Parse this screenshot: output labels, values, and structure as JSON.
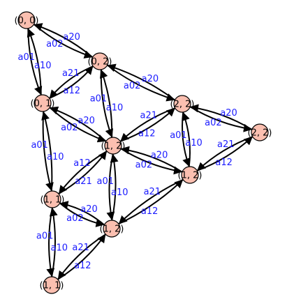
{
  "diagram": {
    "type": "directed-graph",
    "node_color": "#fbbfb0",
    "edge_label_color": "#1a1aff",
    "nodes": [
      {
        "id": "00",
        "label": "(0, 0)"
      },
      {
        "id": "02",
        "label": "(0, 2)"
      },
      {
        "id": "01",
        "label": "(0, 1)"
      },
      {
        "id": "12",
        "label": "(1, 2)"
      },
      {
        "id": "22",
        "label": "(2, 2)"
      },
      {
        "id": "22b",
        "label": "(2, 2)"
      },
      {
        "id": "11",
        "label": "(1, 1)"
      },
      {
        "id": "12b",
        "label": "(1, 2)"
      },
      {
        "id": "12c",
        "label": "(1, 2)"
      },
      {
        "id": "11b",
        "label": "(1, 1)"
      }
    ],
    "edges": [
      {
        "from": "00",
        "to": "02",
        "label": "a02"
      },
      {
        "from": "02",
        "to": "00",
        "label": "a20"
      },
      {
        "from": "00",
        "to": "01",
        "label": "a01"
      },
      {
        "from": "01",
        "to": "00",
        "label": "a10"
      },
      {
        "from": "01",
        "to": "02",
        "label": "a12"
      },
      {
        "from": "02",
        "to": "01",
        "label": "a21"
      },
      {
        "from": "02",
        "to": "22",
        "label": "a02"
      },
      {
        "from": "22",
        "to": "02",
        "label": "a20"
      },
      {
        "from": "02",
        "to": "12",
        "label": "a01"
      },
      {
        "from": "12",
        "to": "02",
        "label": "a10"
      },
      {
        "from": "01",
        "to": "12",
        "label": "a02"
      },
      {
        "from": "12",
        "to": "01",
        "label": "a20"
      },
      {
        "from": "12",
        "to": "22",
        "label": "a12"
      },
      {
        "from": "22",
        "to": "12",
        "label": "a21"
      },
      {
        "from": "22",
        "to": "22b",
        "label": "a02"
      },
      {
        "from": "22b",
        "to": "22",
        "label": "a20"
      },
      {
        "from": "22",
        "to": "12b",
        "label": "a01"
      },
      {
        "from": "12b",
        "to": "22",
        "label": "a10"
      },
      {
        "from": "12b",
        "to": "22b",
        "label": "a12"
      },
      {
        "from": "22b",
        "to": "12b",
        "label": "a21"
      },
      {
        "from": "01",
        "to": "11",
        "label": "a01"
      },
      {
        "from": "11",
        "to": "01",
        "label": "a10"
      },
      {
        "from": "11",
        "to": "12",
        "label": "a21"
      },
      {
        "from": "12",
        "to": "11",
        "label": "a12"
      },
      {
        "from": "12",
        "to": "12c",
        "label": "a01"
      },
      {
        "from": "12c",
        "to": "12",
        "label": "a10"
      },
      {
        "from": "12b",
        "to": "12",
        "label": "a20"
      },
      {
        "from": "12",
        "to": "12b",
        "label": "a02"
      },
      {
        "from": "11",
        "to": "12c",
        "label": "a02"
      },
      {
        "from": "12c",
        "to": "11",
        "label": "a20"
      },
      {
        "from": "12c",
        "to": "12b",
        "label": "a12"
      },
      {
        "from": "12b",
        "to": "12c",
        "label": "a21"
      },
      {
        "from": "11",
        "to": "11b",
        "label": "a01"
      },
      {
        "from": "11b",
        "to": "11",
        "label": "a10"
      },
      {
        "from": "11b",
        "to": "12c",
        "label": "a12"
      },
      {
        "from": "12c",
        "to": "11b",
        "label": "a21"
      }
    ]
  }
}
